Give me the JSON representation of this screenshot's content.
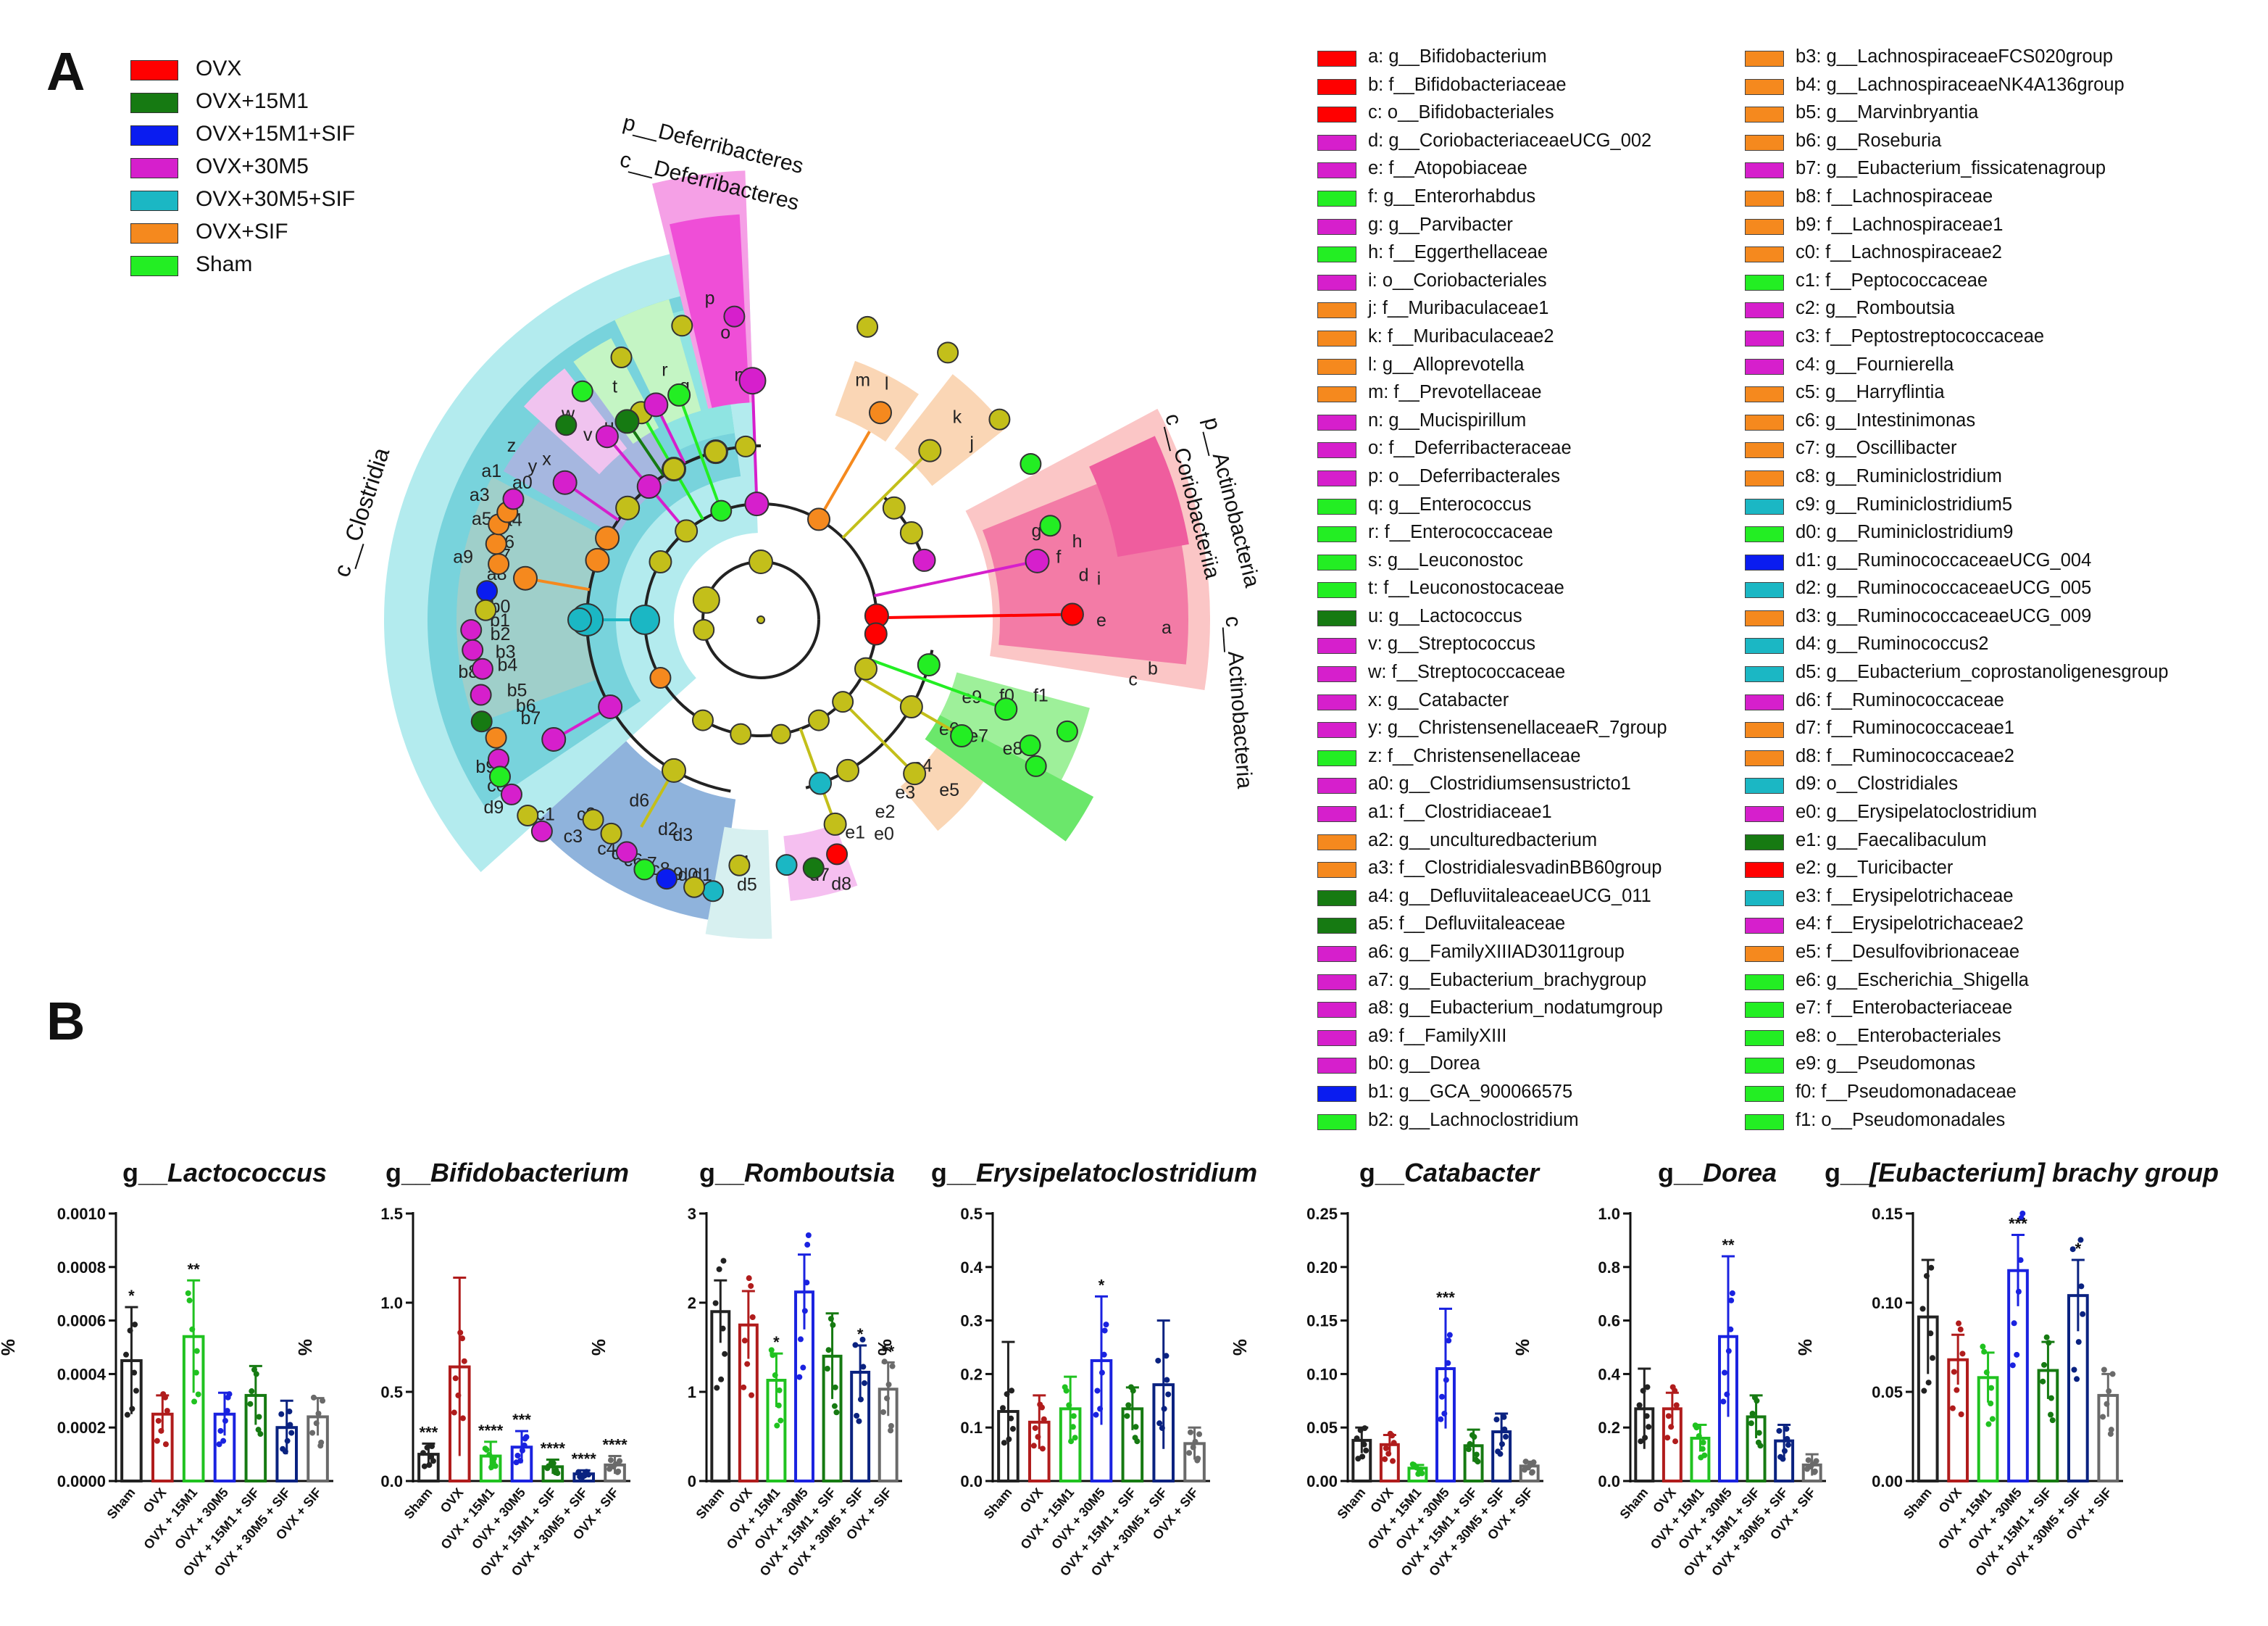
{
  "panels": {
    "a": "A",
    "b": "B"
  },
  "legend_groups": [
    {
      "label": "OVX",
      "color": "#ff0000"
    },
    {
      "label": "OVX+15M1",
      "color": "#167a12"
    },
    {
      "label": "OVX+15M1+SIF",
      "color": "#0a1cf0"
    },
    {
      "label": "OVX+30M5",
      "color": "#d61fcc"
    },
    {
      "label": "OVX+30M5+SIF",
      "color": "#1bb7c4"
    },
    {
      "label": "OVX+SIF",
      "color": "#f5891e"
    },
    {
      "label": "Sham",
      "color": "#23ee23"
    }
  ],
  "cladogram": {
    "clade_labels": [
      {
        "text": "p__Deferribacteres"
      },
      {
        "text": "c__Deferribacteres"
      },
      {
        "text": "p__Actinobacteria"
      },
      {
        "text": "c__Coriobacteriia"
      },
      {
        "text": "c__Actinobacteria"
      },
      {
        "text": "c__Clostridia"
      }
    ],
    "sector_letters": [
      "a",
      "b",
      "c",
      "d",
      "e",
      "f",
      "g",
      "h",
      "i",
      "j",
      "k",
      "l",
      "m",
      "n",
      "o",
      "p",
      "q",
      "r",
      "s",
      "t",
      "u",
      "v",
      "w",
      "x",
      "y",
      "z",
      "a0",
      "a1",
      "a2",
      "a3",
      "a4",
      "a5",
      "a6",
      "a7",
      "a8",
      "a9",
      "b0",
      "b1",
      "b2",
      "b3",
      "b4",
      "b5",
      "b6",
      "b7",
      "b8",
      "b9",
      "c0",
      "c1",
      "c2",
      "c3",
      "c4",
      "c5",
      "c6",
      "c7",
      "c8",
      "c9",
      "d0",
      "d1",
      "d2",
      "d3",
      "d4",
      "d5",
      "d6",
      "d7",
      "d8",
      "d9",
      "e0",
      "e1",
      "e2",
      "e3",
      "e4",
      "e5",
      "e6",
      "e7",
      "e8",
      "e9",
      "f0",
      "f1"
    ]
  },
  "taxa_key": [
    {
      "label": "a: g__Bifidobacterium",
      "color": "#ff0000"
    },
    {
      "label": "b: f__Bifidobacteriaceae",
      "color": "#ff0000"
    },
    {
      "label": "c: o__Bifidobacteriales",
      "color": "#ff0000"
    },
    {
      "label": "d: g__CoriobacteriaceaeUCG_002",
      "color": "#d61fcc"
    },
    {
      "label": "e: f__Atopobiaceae",
      "color": "#d61fcc"
    },
    {
      "label": "f: g__Enterorhabdus",
      "color": "#23ee23"
    },
    {
      "label": "g: g__Parvibacter",
      "color": "#d61fcc"
    },
    {
      "label": "h: f__Eggerthellaceae",
      "color": "#23ee23"
    },
    {
      "label": "i: o__Coriobacteriales",
      "color": "#d61fcc"
    },
    {
      "label": "j: f__Muribaculaceae1",
      "color": "#f5891e"
    },
    {
      "label": "k: f__Muribaculaceae2",
      "color": "#f5891e"
    },
    {
      "label": "l: g__Alloprevotella",
      "color": "#f5891e"
    },
    {
      "label": "m: f__Prevotellaceae",
      "color": "#f5891e"
    },
    {
      "label": "n: g__Mucispirillum",
      "color": "#d61fcc"
    },
    {
      "label": "o: f__Deferribacteraceae",
      "color": "#d61fcc"
    },
    {
      "label": "p: o__Deferribacterales",
      "color": "#d61fcc"
    },
    {
      "label": "q: g__Enterococcus",
      "color": "#23ee23"
    },
    {
      "label": "r: f__Enterococcaceae",
      "color": "#23ee23"
    },
    {
      "label": "s: g__Leuconostoc",
      "color": "#23ee23"
    },
    {
      "label": "t: f__Leuconostocaceae",
      "color": "#23ee23"
    },
    {
      "label": "u: g__Lactococcus",
      "color": "#167a12"
    },
    {
      "label": "v: g__Streptococcus",
      "color": "#d61fcc"
    },
    {
      "label": "w: f__Streptococcaceae",
      "color": "#d61fcc"
    },
    {
      "label": "x: g__Catabacter",
      "color": "#d61fcc"
    },
    {
      "label": "y: g__ChristensenellaceaeR_7group",
      "color": "#d61fcc"
    },
    {
      "label": "z: f__Christensenellaceae",
      "color": "#23ee23"
    },
    {
      "label": "a0: g__Clostridiumsensustricto1",
      "color": "#d61fcc"
    },
    {
      "label": "a1: f__Clostridiaceae1",
      "color": "#d61fcc"
    },
    {
      "label": "a2: g__unculturedbacterium",
      "color": "#f5891e"
    },
    {
      "label": "a3: f__ClostridialesvadinBB60group",
      "color": "#f5891e"
    },
    {
      "label": "a4: g__DefluviitaleaceaeUCG_011",
      "color": "#167a12"
    },
    {
      "label": "a5: f__Defluviitaleaceae",
      "color": "#167a12"
    },
    {
      "label": "a6: g__FamilyXIIIAD3011group",
      "color": "#d61fcc"
    },
    {
      "label": "a7: g__Eubacterium_brachygroup",
      "color": "#d61fcc"
    },
    {
      "label": "a8: g__Eubacterium_nodatumgroup",
      "color": "#d61fcc"
    },
    {
      "label": "a9: f__FamilyXIII",
      "color": "#d61fcc"
    },
    {
      "label": "b0: g__Dorea",
      "color": "#d61fcc"
    },
    {
      "label": "b1: g__GCA_900066575",
      "color": "#0a1cf0"
    },
    {
      "label": "b2: g__Lachnoclostridium",
      "color": "#23ee23"
    },
    {
      "label": "b3: g__LachnospiraceaeFCS020group",
      "color": "#f5891e"
    },
    {
      "label": "b4: g__LachnospiraceaeNK4A136group",
      "color": "#f5891e"
    },
    {
      "label": "b5: g__Marvinbryantia",
      "color": "#f5891e"
    },
    {
      "label": "b6: g__Roseburia",
      "color": "#f5891e"
    },
    {
      "label": "b7: g__Eubacterium_fissicatenagroup",
      "color": "#d61fcc"
    },
    {
      "label": "b8: f__Lachnospiraceae",
      "color": "#f5891e"
    },
    {
      "label": "b9: f__Lachnospiraceae1",
      "color": "#f5891e"
    },
    {
      "label": "c0: f__Lachnospiraceae2",
      "color": "#f5891e"
    },
    {
      "label": "c1: f__Peptococcaceae",
      "color": "#23ee23"
    },
    {
      "label": "c2: g__Romboutsia",
      "color": "#d61fcc"
    },
    {
      "label": "c3: f__Peptostreptococcaceae",
      "color": "#d61fcc"
    },
    {
      "label": "c4: g__Fournierella",
      "color": "#d61fcc"
    },
    {
      "label": "c5: g__Harryflintia",
      "color": "#f5891e"
    },
    {
      "label": "c6: g__Intestinimonas",
      "color": "#f5891e"
    },
    {
      "label": "c7: g__Oscillibacter",
      "color": "#f5891e"
    },
    {
      "label": "c8: g__Ruminiclostridium",
      "color": "#f5891e"
    },
    {
      "label": "c9: g__Ruminiclostridium5",
      "color": "#1bb7c4"
    },
    {
      "label": "d0: g__Ruminiclostridium9",
      "color": "#23ee23"
    },
    {
      "label": "d1: g__RuminococcaceaeUCG_004",
      "color": "#0a1cf0"
    },
    {
      "label": "d2: g__RuminococcaceaeUCG_005",
      "color": "#1bb7c4"
    },
    {
      "label": "d3: g__RuminococcaceaeUCG_009",
      "color": "#f5891e"
    },
    {
      "label": "d4: g__Ruminococcus2",
      "color": "#1bb7c4"
    },
    {
      "label": "d5: g__Eubacterium_coprostanoligenesgroup",
      "color": "#1bb7c4"
    },
    {
      "label": "d6: f__Ruminococcaceae",
      "color": "#d61fcc"
    },
    {
      "label": "d7: f__Ruminococcaceae1",
      "color": "#f5891e"
    },
    {
      "label": "d8: f__Ruminococcaceae2",
      "color": "#f5891e"
    },
    {
      "label": "d9: o__Clostridiales",
      "color": "#1bb7c4"
    },
    {
      "label": "e0: g__Erysipelatoclostridium",
      "color": "#d61fcc"
    },
    {
      "label": "e1: g__Faecalibaculum",
      "color": "#167a12"
    },
    {
      "label": "e2: g__Turicibacter",
      "color": "#ff0000"
    },
    {
      "label": "e3: f__Erysipelotrichaceae",
      "color": "#1bb7c4"
    },
    {
      "label": "e4: f__Erysipelotrichaceae2",
      "color": "#d61fcc"
    },
    {
      "label": "e5: f__Desulfovibrionaceae",
      "color": "#f5891e"
    },
    {
      "label": "e6: g__Escherichia_Shigella",
      "color": "#23ee23"
    },
    {
      "label": "e7: f__Enterobacteriaceae",
      "color": "#23ee23"
    },
    {
      "label": "e8: o__Enterobacteriales",
      "color": "#23ee23"
    },
    {
      "label": "e9: g__Pseudomonas",
      "color": "#23ee23"
    },
    {
      "label": "f0: f__Pseudomonadaceae",
      "color": "#23ee23"
    },
    {
      "label": "f1: o__Pseudomonadales",
      "color": "#23ee23"
    }
  ],
  "chart_data": [
    {
      "type": "bar",
      "title_prefix": "g__",
      "title_name": "Lactococcus",
      "ylabel": "%",
      "ylim": [
        0,
        0.001
      ],
      "yticks": [
        "0.0000",
        "0.0002",
        "0.0004",
        "0.0006",
        "0.0008",
        "0.0010"
      ],
      "categories": [
        "Sham",
        "OVX",
        "OVX + 15M1",
        "OVX + 30M5",
        "OVX + 15M1 + SIF",
        "OVX + 30M5 + SIF",
        "OVX + SIF"
      ],
      "values": [
        0.00045,
        0.00025,
        0.00054,
        0.00025,
        0.00032,
        0.0002,
        0.00024
      ],
      "errors": [
        0.0002,
        7e-05,
        0.00021,
        8e-05,
        0.00011,
        0.0001,
        7e-05
      ],
      "sig": [
        "*",
        "",
        "**",
        "",
        "",
        "",
        ""
      ]
    },
    {
      "type": "bar",
      "title_prefix": "g__",
      "title_name": "Bifidobacterium",
      "ylabel": "%",
      "ylim": [
        0,
        1.5
      ],
      "yticks": [
        "0.0",
        "0.5",
        "1.0",
        "1.5"
      ],
      "categories": [
        "Sham",
        "OVX",
        "OVX + 15M1",
        "OVX + 30M5",
        "OVX + 15M1 + SIF",
        "OVX + 30M5 + SIF",
        "OVX + SIF"
      ],
      "values": [
        0.15,
        0.64,
        0.14,
        0.19,
        0.08,
        0.04,
        0.09
      ],
      "errors": [
        0.06,
        0.5,
        0.08,
        0.09,
        0.04,
        0.02,
        0.05
      ],
      "sig": [
        "***",
        "",
        "****",
        "***",
        "****",
        "****",
        "****"
      ]
    },
    {
      "type": "bar",
      "title_prefix": "g__",
      "title_name": "Romboutsia",
      "ylabel": "%",
      "ylim": [
        0,
        3
      ],
      "yticks": [
        "0",
        "1",
        "2",
        "3"
      ],
      "categories": [
        "Sham",
        "OVX",
        "OVX + 15M1",
        "OVX + 30M5",
        "OVX + 15M1 + SIF",
        "OVX + 30M5 + SIF",
        "OVX + SIF"
      ],
      "values": [
        1.9,
        1.75,
        1.13,
        2.12,
        1.4,
        1.22,
        1.03
      ],
      "errors": [
        0.35,
        0.38,
        0.3,
        0.42,
        0.48,
        0.3,
        0.3
      ],
      "sig": [
        "",
        "",
        "*",
        "",
        "",
        "*",
        "**"
      ]
    },
    {
      "type": "bar",
      "title_prefix": "g__",
      "title_name": "Erysipelatoclostridium",
      "ylabel": "%",
      "ylim": [
        0,
        0.5
      ],
      "yticks": [
        "0.0",
        "0.1",
        "0.2",
        "0.3",
        "0.4",
        "0.5"
      ],
      "categories": [
        "Sham",
        "OVX",
        "OVX + 15M1",
        "OVX + 30M5",
        "OVX + 15M1 + SIF",
        "OVX + 30M5 + SIF",
        "OVX + SIF"
      ],
      "values": [
        0.13,
        0.11,
        0.135,
        0.225,
        0.135,
        0.18,
        0.07
      ],
      "errors": [
        0.13,
        0.05,
        0.06,
        0.12,
        0.04,
        0.12,
        0.03
      ],
      "sig": [
        "",
        "",
        "",
        "*",
        "",
        "",
        ""
      ]
    },
    {
      "type": "bar",
      "title_prefix": "g__",
      "title_name": "Catabacter",
      "ylabel": "%",
      "ylim": [
        0,
        0.25
      ],
      "yticks": [
        "0.00",
        "0.05",
        "0.10",
        "0.15",
        "0.20",
        "0.25"
      ],
      "categories": [
        "Sham",
        "OVX",
        "OVX + 15M1",
        "OVX + 30M5",
        "OVX + 15M1 + SIF",
        "OVX + 30M5 + SIF",
        "OVX + SIF"
      ],
      "values": [
        0.038,
        0.034,
        0.012,
        0.105,
        0.033,
        0.046,
        0.014
      ],
      "errors": [
        0.012,
        0.009,
        0.003,
        0.056,
        0.015,
        0.017,
        0.004
      ],
      "sig": [
        "",
        "",
        "",
        "***",
        "",
        "",
        ""
      ]
    },
    {
      "type": "bar",
      "title_prefix": "g__",
      "title_name": "Dorea",
      "ylabel": "%",
      "ylim": [
        0,
        1.0
      ],
      "yticks": [
        "0.0",
        "0.2",
        "0.4",
        "0.6",
        "0.8",
        "1.0"
      ],
      "categories": [
        "Sham",
        "OVX",
        "OVX + 15M1",
        "OVX + 30M5",
        "OVX + 15M1 + SIF",
        "OVX + 30M5 + SIF",
        "OVX + SIF"
      ],
      "values": [
        0.27,
        0.27,
        0.16,
        0.54,
        0.24,
        0.15,
        0.06
      ],
      "errors": [
        0.15,
        0.06,
        0.05,
        0.3,
        0.08,
        0.06,
        0.04
      ],
      "sig": [
        "",
        "",
        "",
        "**",
        "",
        "",
        ""
      ]
    },
    {
      "type": "bar",
      "title_prefix": "g__",
      "title_name": "[Eubacterium] brachy group",
      "ylabel": "%",
      "ylim": [
        0,
        0.15
      ],
      "yticks": [
        "0.00",
        "0.05",
        "0.10",
        "0.15"
      ],
      "categories": [
        "Sham",
        "OVX",
        "OVX + 15M1",
        "OVX + 30M5",
        "OVX + 15M1 + SIF",
        "OVX + 30M5 + SIF",
        "OVX + SIF"
      ],
      "values": [
        0.092,
        0.068,
        0.058,
        0.118,
        0.062,
        0.104,
        0.048
      ],
      "errors": [
        0.032,
        0.014,
        0.014,
        0.02,
        0.016,
        0.02,
        0.012
      ],
      "sig": [
        "",
        "",
        "",
        "***",
        "",
        "*",
        ""
      ]
    }
  ]
}
